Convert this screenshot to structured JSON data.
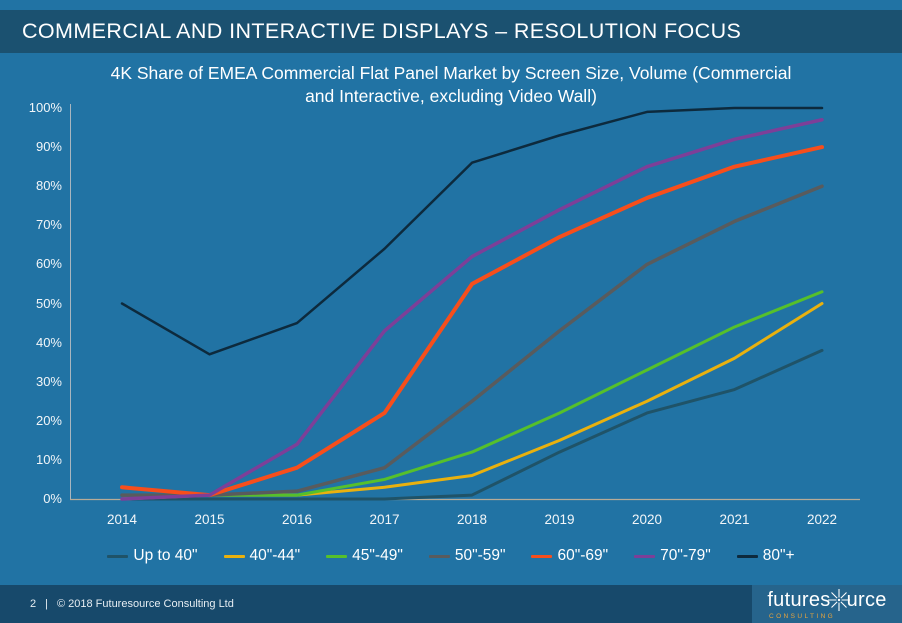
{
  "slide": {
    "header_title": "COMMERCIAL AND INTERACTIVE DISPLAYS – RESOLUTION FOCUS",
    "footer": {
      "page_number": "2",
      "separator": "|",
      "copyright": "© 2018 Futuresource Consulting Ltd"
    },
    "logo": {
      "text_before_star": "futures",
      "text_after_star": "urce",
      "tagline": "CONSULTING"
    }
  },
  "colors": {
    "background": "#2173a4",
    "header_band": "#1b5170",
    "footer_band": "#17496b",
    "text": "#ffffff",
    "axis_y": "#a9b6bf",
    "axis_x": "#b7ab97",
    "logo_tagline": "#e9a43c"
  },
  "chart_data": {
    "type": "line",
    "title": "4K Share of EMEA Commercial Flat Panel Market by Screen Size, Volume (Commercial and Interactive, excluding Video Wall)",
    "title_lines": [
      "4K Share of EMEA Commercial Flat Panel Market by Screen Size, Volume (Commercial",
      "and Interactive, excluding Video Wall)"
    ],
    "xlabel": "",
    "ylabel": "",
    "ylim": [
      0,
      100
    ],
    "ytick_step": 10,
    "ytick_suffix": "%",
    "grid": false,
    "legend_position": "bottom",
    "categories": [
      "2014",
      "2015",
      "2016",
      "2017",
      "2018",
      "2019",
      "2020",
      "2021",
      "2022"
    ],
    "series": [
      {
        "name": "Up to 40\"",
        "color": "#1f5368",
        "values": [
          0,
          0,
          0,
          0,
          1,
          12,
          22,
          28,
          38
        ]
      },
      {
        "name": "40\"-44\"",
        "color": "#e9b10e",
        "values": [
          0,
          1,
          1,
          3,
          6,
          15,
          25,
          36,
          50
        ]
      },
      {
        "name": "45\"-49\"",
        "color": "#56c02b",
        "values": [
          0,
          1,
          1,
          5,
          12,
          22,
          33,
          44,
          53
        ]
      },
      {
        "name": "50\"-59\"",
        "color": "#595b5d",
        "values": [
          1,
          1,
          2,
          8,
          25,
          43,
          60,
          71,
          80
        ]
      },
      {
        "name": "60\"-69\"",
        "color": "#f74e1b",
        "values": [
          3,
          1,
          8,
          22,
          55,
          67,
          77,
          85,
          90
        ]
      },
      {
        "name": "70\"-79\"",
        "color": "#7d3f98",
        "values": [
          0,
          1,
          14,
          43,
          62,
          74,
          85,
          92,
          97
        ]
      },
      {
        "name": "80\"+",
        "color": "#0d2a3d",
        "values": [
          50,
          37,
          45,
          64,
          86,
          93,
          99,
          100,
          100
        ]
      }
    ]
  }
}
